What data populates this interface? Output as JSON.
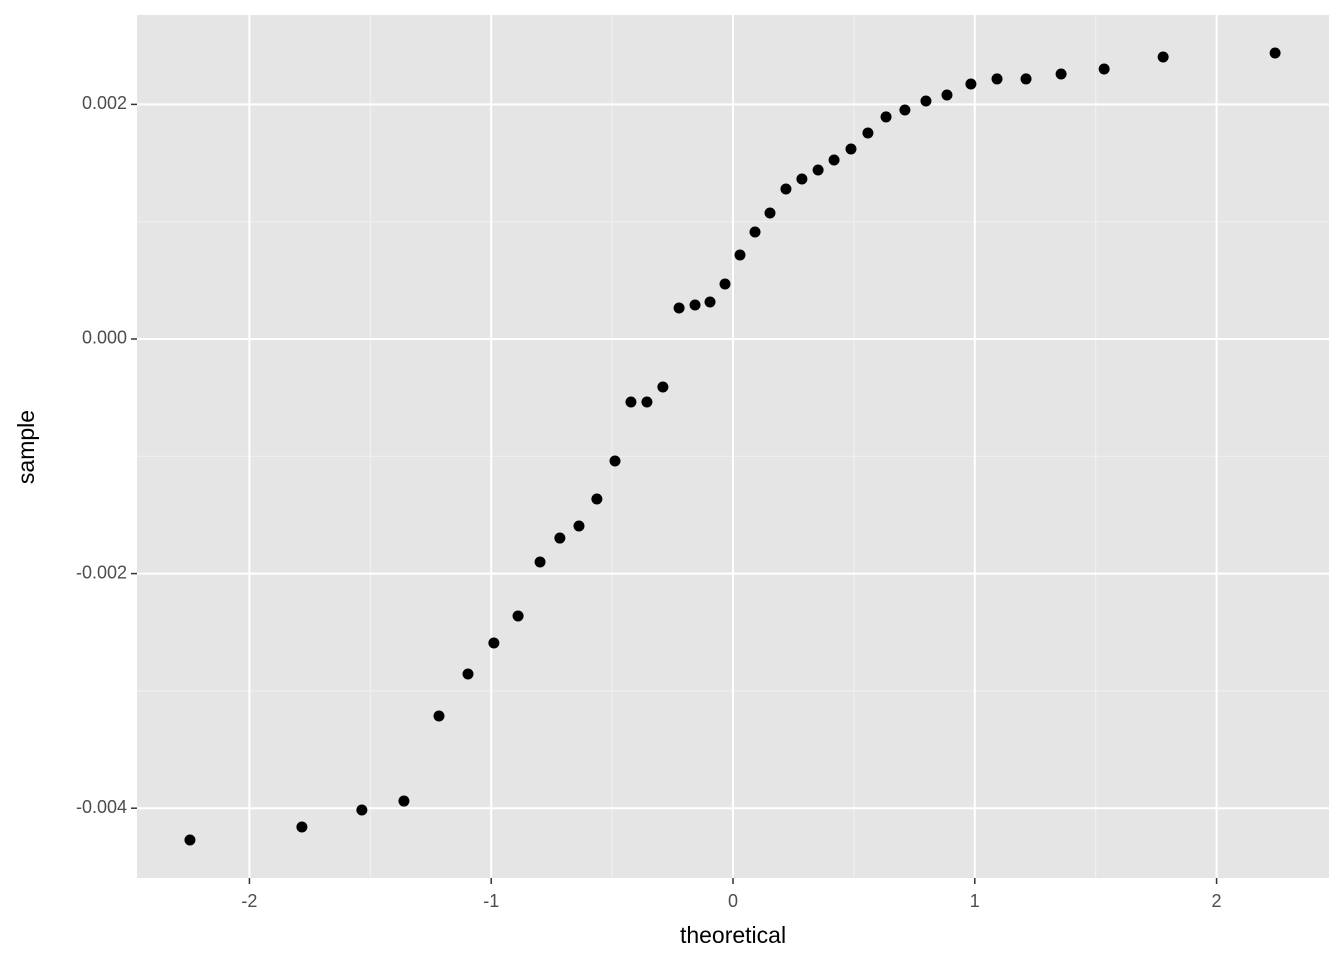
{
  "chart_data": {
    "type": "scatter",
    "x_label": "theoretical",
    "y_label": "sample",
    "x": [
      -2.246,
      -1.783,
      -1.535,
      -1.361,
      -1.216,
      -1.096,
      -0.989,
      -0.889,
      -0.798,
      -0.716,
      -0.637,
      -0.563,
      -0.488,
      -0.422,
      -0.356,
      -0.29,
      -0.223,
      -0.157,
      -0.095,
      -0.033,
      0.029,
      0.091,
      0.153,
      0.219,
      0.285,
      0.352,
      0.418,
      0.488,
      0.558,
      0.633,
      0.711,
      0.798,
      0.885,
      0.984,
      1.092,
      1.212,
      1.357,
      1.535,
      1.779,
      2.242
    ],
    "values": [
      -0.004271,
      -0.00416,
      -0.004015,
      -0.003939,
      -0.003214,
      -0.002856,
      -0.002592,
      -0.002361,
      -0.001901,
      -0.001697,
      -0.001594,
      -0.001364,
      -0.00104,
      -0.000537,
      -0.000537,
      -0.000409,
      0.000264,
      0.00029,
      0.000315,
      0.000469,
      0.000716,
      0.000912,
      0.001074,
      0.001279,
      0.001364,
      0.001441,
      0.001526,
      0.00162,
      0.001756,
      0.001893,
      0.001952,
      0.002029,
      0.00208,
      0.002174,
      0.002217,
      0.002217,
      0.002259,
      0.002302,
      0.002404,
      0.002438
    ],
    "color": "#000000",
    "xlim": [
      -2.465,
      2.465
    ],
    "xticks": [
      -2,
      -1,
      0,
      1,
      2
    ],
    "ylim": [
      -0.004595,
      0.002762
    ],
    "yticks": [
      -0.004,
      -0.002,
      {
        "value": 0,
        "label": "0.000"
      },
      0.002
    ],
    "grid": true
  }
}
